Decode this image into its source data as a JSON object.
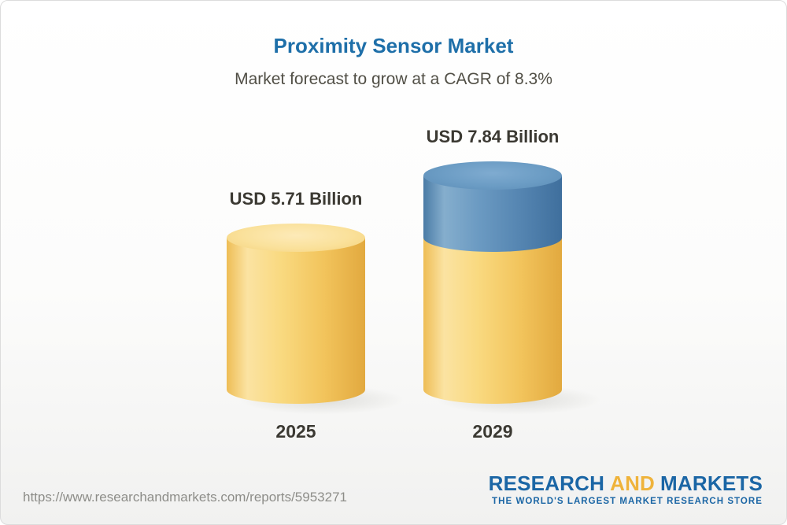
{
  "chart_data": {
    "type": "bar",
    "style": "3d-cylinder",
    "title": "Proximity Sensor Market",
    "subtitle": "Market forecast to grow at a CAGR of 8.3%",
    "cagr_percent": 8.3,
    "unit": "USD Billion",
    "categories": [
      "2025",
      "2029"
    ],
    "values": [
      5.71,
      7.84
    ],
    "value_labels": [
      "USD 5.71 Billion",
      "USD 7.84 Billion"
    ],
    "bars": [
      {
        "category": "2025",
        "total": 5.71,
        "segments": [
          {
            "name": "market-size",
            "value": 5.71,
            "color": "#f5cd6d"
          }
        ]
      },
      {
        "category": "2029",
        "total": 7.84,
        "segments": [
          {
            "name": "base",
            "value": 5.71,
            "color": "#f5cd6d"
          },
          {
            "name": "growth",
            "value": 2.13,
            "color": "#5e8fba"
          }
        ]
      }
    ],
    "axes": {
      "x_visible": false,
      "y_visible": false,
      "gridlines": false
    },
    "legend": {
      "visible": false
    }
  },
  "colors": {
    "title_blue": "#1e6fa9",
    "subtitle_gray": "#514f46",
    "bar_yellow": "#f5cd6d",
    "bar_blue": "#5e8fba",
    "label_dark": "#3b3932",
    "logo_blue": "#1b66a5",
    "logo_gold": "#efb33b"
  },
  "footer": {
    "url": "https://www.researchandmarkets.com/reports/5953271",
    "logo": {
      "research": "RESEARCH",
      "and": "AND",
      "markets": "MARKETS",
      "tagline": "THE WORLD'S LARGEST MARKET RESEARCH STORE"
    }
  }
}
